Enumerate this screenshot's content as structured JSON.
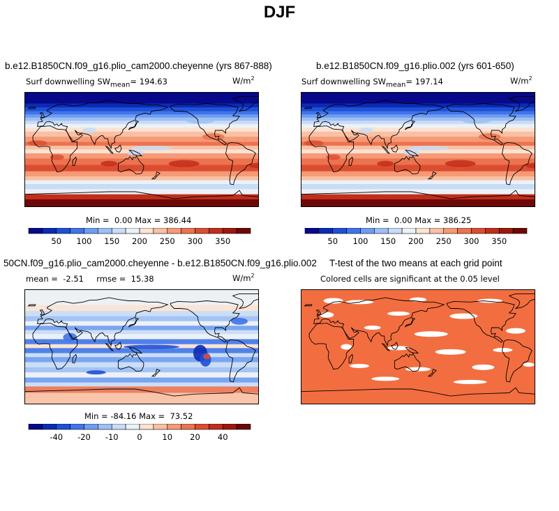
{
  "title": "DJF",
  "colors": {
    "coast": "#000000",
    "significant": "#f26e40",
    "not_significant": "#ffffff"
  },
  "panels": [
    {
      "id": "p1",
      "title": "b.e12.B1850CN.f09_g16.plio_cam2000.cheyenne (yrs 867-888)",
      "field": "Surf downwelling SW",
      "stat_label": "mean",
      "stat_value": "194.63",
      "units": "W/m",
      "units_exp": "2",
      "min_label": "Min =",
      "min_value": "0.00",
      "max_label": "Max =",
      "max_value": "386.44",
      "colorbar": {
        "ticks": [
          "50",
          "100",
          "150",
          "200",
          "250",
          "300",
          "350"
        ],
        "colors": [
          "#08088a",
          "#0b2bb5",
          "#1f4fd6",
          "#3f74ea",
          "#6f9cf2",
          "#9dbff5",
          "#c7dcf7",
          "#ecf1f6",
          "#fbe2d2",
          "#f9c0a3",
          "#f59a76",
          "#ec7350",
          "#dc4d30",
          "#c12e1b",
          "#9c170d",
          "#6e0707"
        ]
      }
    },
    {
      "id": "p2",
      "title": "b.e12.B1850CN.f09_g16.plio.002 (yrs 601-650)",
      "field": "Surf downwelling SW",
      "stat_label": "mean",
      "stat_value": "197.14",
      "units": "W/m",
      "units_exp": "2",
      "min_label": "Min =",
      "min_value": "0.00",
      "max_label": "Max =",
      "max_value": "386.25",
      "colorbar": {
        "ticks": [
          "50",
          "100",
          "150",
          "200",
          "250",
          "300",
          "350"
        ],
        "colors": [
          "#08088a",
          "#0b2bb5",
          "#1f4fd6",
          "#3f74ea",
          "#6f9cf2",
          "#9dbff5",
          "#c7dcf7",
          "#ecf1f6",
          "#fbe2d2",
          "#f9c0a3",
          "#f59a76",
          "#ec7350",
          "#dc4d30",
          "#c12e1b",
          "#9c170d",
          "#6e0707"
        ]
      }
    },
    {
      "id": "p3",
      "title": "50CN.f09_g16.plio_cam2000.cheyenne - b.e12.B1850CN.f09_g16.plio.002",
      "mean_label": "mean =",
      "mean_value": "-2.51",
      "rmse_label": "rmse =",
      "rmse_value": "15.38",
      "units": "W/m",
      "units_exp": "2",
      "min_label": "Min =",
      "min_value": "-84.16",
      "max_label": "Max =",
      "max_value": "73.52",
      "colorbar": {
        "ticks": [
          "-40",
          "-20",
          "-10",
          "0",
          "10",
          "20",
          "40"
        ],
        "colors": [
          "#08088a",
          "#0b2bb5",
          "#1f4fd6",
          "#3f74ea",
          "#6f9cf2",
          "#9dbff5",
          "#c7dcf7",
          "#ecf1f6",
          "#fbe2d2",
          "#f9c0a3",
          "#f59a76",
          "#ec7350",
          "#dc4d30",
          "#c12e1b",
          "#9c170d",
          "#6e0707"
        ]
      }
    },
    {
      "id": "p4",
      "title": "T-test of the two means at each grid point",
      "subtitle": "Colored cells are significant at the 0.05 level"
    }
  ]
}
